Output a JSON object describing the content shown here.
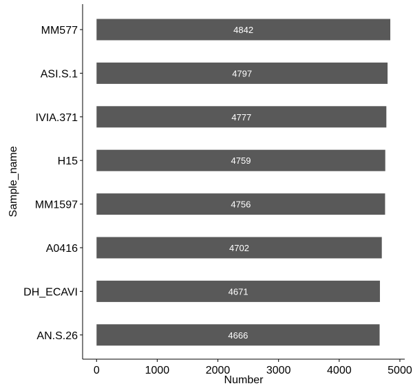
{
  "chart_data": {
    "type": "bar",
    "orientation": "horizontal",
    "xlabel": "Number",
    "ylabel": "Sample_name",
    "categories": [
      "MM577",
      "ASI.S.1",
      "IVIA.371",
      "H15",
      "MM1597",
      "A0416",
      "DH_ECAVI",
      "AN.S.26"
    ],
    "values": [
      4842,
      4797,
      4777,
      4759,
      4756,
      4702,
      4671,
      4666
    ],
    "data_labels": [
      "4842",
      "4797",
      "4777",
      "4759",
      "4756",
      "4702",
      "4671",
      "4666"
    ],
    "x_ticks": [
      0,
      1000,
      2000,
      3000,
      4000,
      5000
    ],
    "x_tick_labels": [
      "0",
      "1000",
      "2000",
      "3000",
      "4000",
      "5000"
    ],
    "xlim": [
      -230,
      5080
    ],
    "grid": false,
    "bar_color": "#595959",
    "label_color": "#ffffff"
  }
}
